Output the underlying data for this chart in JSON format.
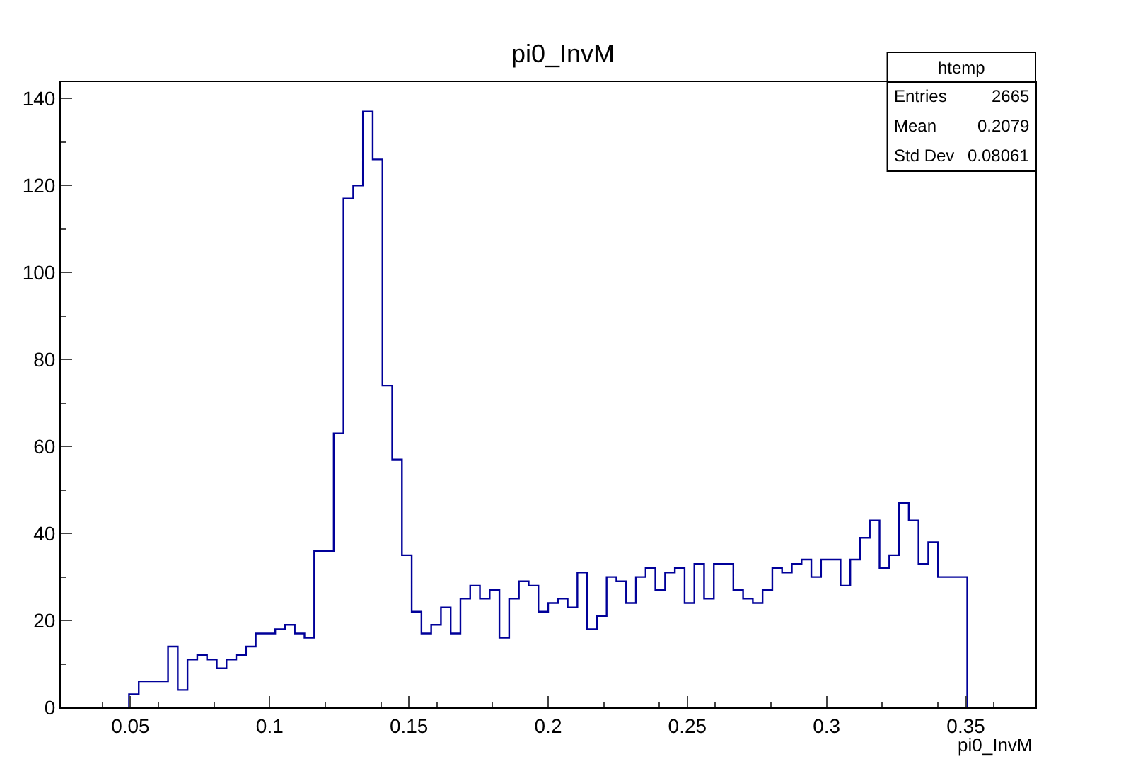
{
  "chart_data": {
    "type": "histogram",
    "title": "pi0_InvM",
    "xlabel": "pi0_InvM",
    "bins": [
      0.0495,
      0.053,
      0.0565,
      0.06,
      0.0635,
      0.067,
      0.0705,
      0.074,
      0.0775,
      0.081,
      0.0845,
      0.088,
      0.0915,
      0.095,
      0.0985,
      0.102,
      0.1055,
      0.109,
      0.1125,
      0.116,
      0.1195,
      0.123,
      0.1265,
      0.13,
      0.1335,
      0.137,
      0.1405,
      0.144,
      0.1475,
      0.151,
      0.1545,
      0.158,
      0.1615,
      0.165,
      0.1685,
      0.172,
      0.1755,
      0.179,
      0.1825,
      0.186,
      0.1895,
      0.193,
      0.1965,
      0.2,
      0.2035,
      0.207,
      0.2105,
      0.214,
      0.2175,
      0.221,
      0.2245,
      0.228,
      0.2315,
      0.235,
      0.2385,
      0.242,
      0.2455,
      0.249,
      0.2525,
      0.256,
      0.2595,
      0.263,
      0.2665,
      0.27,
      0.2735,
      0.277,
      0.2805,
      0.284,
      0.2875,
      0.291,
      0.2945,
      0.298,
      0.3015,
      0.305,
      0.3085,
      0.312,
      0.3155,
      0.319,
      0.3225,
      0.326,
      0.3295,
      0.333,
      0.3365,
      0.34,
      0.3435,
      0.347,
      0.3505
    ],
    "values": [
      3,
      6,
      6,
      6,
      14,
      4,
      11,
      12,
      11,
      9,
      11,
      12,
      14,
      17,
      17,
      18,
      19,
      17,
      16,
      36,
      36,
      63,
      117,
      120,
      137,
      126,
      74,
      57,
      35,
      22,
      17,
      19,
      23,
      17,
      25,
      28,
      25,
      27,
      16,
      25,
      29,
      28,
      22,
      24,
      25,
      23,
      31,
      18,
      21,
      30,
      29,
      24,
      30,
      32,
      27,
      31,
      32,
      24,
      33,
      25,
      33,
      33,
      27,
      25,
      24,
      27,
      32,
      31,
      33,
      34,
      30,
      34,
      34,
      28,
      34,
      39,
      43,
      32,
      35,
      47,
      43,
      33,
      38,
      30,
      30,
      30
    ],
    "color": "#000099",
    "xlim": [
      0.025,
      0.375
    ],
    "xticks": [
      {
        "value": 0.05,
        "label": "0.05"
      },
      {
        "value": 0.1,
        "label": "0.1"
      },
      {
        "value": 0.15,
        "label": "0.15"
      },
      {
        "value": 0.2,
        "label": "0.2"
      },
      {
        "value": 0.25,
        "label": "0.25"
      },
      {
        "value": 0.3,
        "label": "0.3"
      },
      {
        "value": 0.35,
        "label": "0.35"
      }
    ],
    "ylim": [
      0,
      143.8
    ],
    "yticks": [
      0,
      20,
      40,
      60,
      80,
      100,
      120,
      140
    ],
    "annotations": [
      "htemp",
      "Entries",
      "2665",
      "Mean",
      "0.2079",
      "Std Dev",
      "0.08061"
    ]
  }
}
